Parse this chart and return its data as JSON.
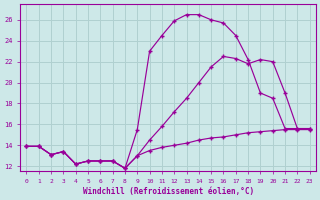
{
  "xlabel": "Windchill (Refroidissement éolien,°C)",
  "bg_color": "#cde8e8",
  "line_color": "#990099",
  "grid_color": "#b0d0d0",
  "ylim": [
    11.5,
    27.5
  ],
  "xlim": [
    -0.5,
    23.5
  ],
  "yticks": [
    12,
    14,
    16,
    18,
    20,
    22,
    24,
    26
  ],
  "xticks": [
    0,
    1,
    2,
    3,
    4,
    5,
    6,
    7,
    8,
    9,
    10,
    11,
    12,
    13,
    14,
    15,
    16,
    17,
    18,
    19,
    20,
    21,
    22,
    23
  ],
  "line1_x": [
    0,
    1,
    2,
    3,
    4,
    5,
    6,
    7,
    8,
    9,
    10,
    11,
    12,
    13,
    14,
    15,
    16,
    17,
    18,
    19,
    20,
    21,
    22,
    23
  ],
  "line1_y": [
    13.9,
    13.9,
    13.1,
    13.4,
    12.2,
    12.5,
    12.5,
    12.5,
    11.8,
    15.5,
    23.0,
    24.5,
    25.9,
    26.5,
    26.5,
    26.0,
    25.7,
    24.5,
    22.2,
    19.0,
    18.5,
    15.6,
    15.6,
    15.6
  ],
  "line2_x": [
    0,
    1,
    2,
    3,
    4,
    5,
    6,
    7,
    8,
    9,
    10,
    11,
    12,
    13,
    14,
    15,
    16,
    17,
    18,
    19,
    20,
    21,
    22,
    23
  ],
  "line2_y": [
    13.9,
    13.9,
    13.1,
    13.4,
    12.2,
    12.5,
    12.5,
    12.5,
    11.8,
    13.0,
    14.5,
    15.8,
    17.2,
    18.5,
    20.0,
    21.5,
    22.5,
    22.3,
    21.8,
    22.2,
    22.0,
    19.0,
    15.6,
    15.6
  ],
  "line3_x": [
    0,
    1,
    2,
    3,
    4,
    5,
    6,
    7,
    8,
    9,
    10,
    11,
    12,
    13,
    14,
    15,
    16,
    17,
    18,
    19,
    20,
    21,
    22,
    23
  ],
  "line3_y": [
    13.9,
    13.9,
    13.1,
    13.4,
    12.2,
    12.5,
    12.5,
    12.5,
    11.8,
    13.0,
    13.5,
    13.8,
    14.0,
    14.2,
    14.5,
    14.7,
    14.8,
    15.0,
    15.2,
    15.3,
    15.4,
    15.5,
    15.5,
    15.5
  ]
}
